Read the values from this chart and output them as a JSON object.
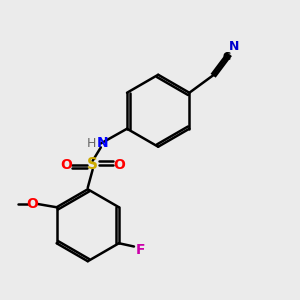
{
  "bg_color": "#ebebeb",
  "bond_color": "#000000",
  "atom_colors": {
    "N_amine": "#0000ff",
    "N_cyano": "#0000cc",
    "O": "#ff0000",
    "S": "#ccaa00",
    "F": "#cc00aa",
    "H": "#666666",
    "C": "#000000"
  },
  "figsize": [
    3.0,
    3.0
  ],
  "dpi": 100
}
